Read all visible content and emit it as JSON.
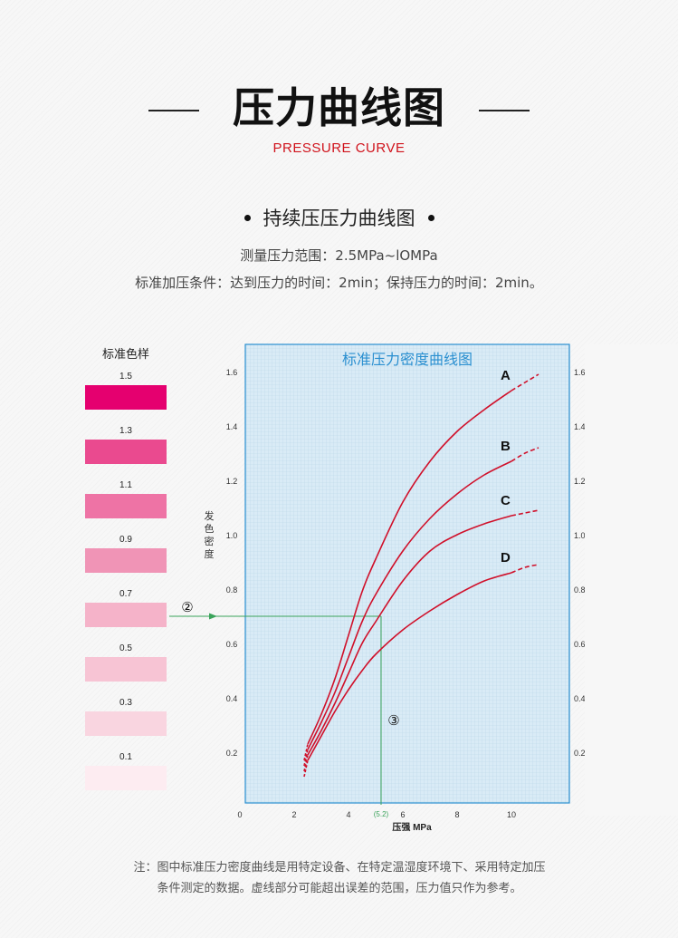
{
  "header": {
    "title": "压力曲线图",
    "subtitle": "PRESSURE CURVE"
  },
  "section": {
    "title": "持续压压力曲线图",
    "line1": "测量压力范围：2.5MPa~lOMPa",
    "line2": "标准加压条件：达到压力的时间：2min；保持压力的时间：2min。"
  },
  "swatches": {
    "title": "标准色样",
    "items": [
      {
        "label": "1.5",
        "color": "#e5006f"
      },
      {
        "label": "1.3",
        "color": "#ea4a8f"
      },
      {
        "label": "1.1",
        "color": "#ee73a5"
      },
      {
        "label": "0.9",
        "color": "#f094b6"
      },
      {
        "label": "0.7",
        "color": "#f5b3c9"
      },
      {
        "label": "0.5",
        "color": "#f7c4d4"
      },
      {
        "label": "0.3",
        "color": "#f9d5e0"
      },
      {
        "label": "0.1",
        "color": "#fdecf1"
      }
    ]
  },
  "chart_data": {
    "type": "line",
    "title": "标准压力密度曲线图",
    "xlabel": "压强 MPa",
    "ylabel": "发色密度",
    "xlim": [
      0,
      12
    ],
    "ylim": [
      0,
      1.6
    ],
    "x_ticks": [
      "0",
      "2",
      "4",
      "6",
      "8",
      "10"
    ],
    "y_ticks": [
      "0.2",
      "0.4",
      "0.6",
      "0.8",
      "1.0",
      "1.2",
      "1.4",
      "1.6"
    ],
    "right_ticks": [
      "0.2",
      "0.4",
      "0.6",
      "0.8",
      "1.0",
      "1.2",
      "1.4",
      "1.6"
    ],
    "grid": true,
    "line_color": "#d0102a",
    "background_color": "#d8ecf7",
    "series": [
      {
        "name": "A",
        "solid": [
          [
            2.5,
            0.23
          ],
          [
            3,
            0.34
          ],
          [
            3.5,
            0.47
          ],
          [
            4,
            0.63
          ],
          [
            4.5,
            0.79
          ],
          [
            5,
            0.91
          ],
          [
            6,
            1.12
          ],
          [
            7,
            1.27
          ],
          [
            8,
            1.38
          ],
          [
            9,
            1.46
          ],
          [
            10,
            1.53
          ]
        ],
        "dashed": [
          [
            10,
            1.53
          ],
          [
            10.5,
            1.56
          ],
          [
            11,
            1.59
          ]
        ]
      },
      {
        "name": "B",
        "solid": [
          [
            2.5,
            0.21
          ],
          [
            3,
            0.31
          ],
          [
            3.5,
            0.42
          ],
          [
            4,
            0.55
          ],
          [
            4.5,
            0.68
          ],
          [
            5,
            0.78
          ],
          [
            6,
            0.94
          ],
          [
            7,
            1.06
          ],
          [
            8,
            1.15
          ],
          [
            9,
            1.22
          ],
          [
            10,
            1.27
          ]
        ],
        "dashed": [
          [
            10,
            1.27
          ],
          [
            10.5,
            1.3
          ],
          [
            11,
            1.32
          ]
        ]
      },
      {
        "name": "C",
        "solid": [
          [
            2.5,
            0.19
          ],
          [
            3,
            0.28
          ],
          [
            3.5,
            0.38
          ],
          [
            4,
            0.49
          ],
          [
            4.5,
            0.6
          ],
          [
            5,
            0.68
          ],
          [
            6,
            0.83
          ],
          [
            7,
            0.94
          ],
          [
            8,
            1.0
          ],
          [
            9,
            1.04
          ],
          [
            10,
            1.07
          ]
        ],
        "dashed": [
          [
            10,
            1.07
          ],
          [
            10.5,
            1.08
          ],
          [
            11,
            1.09
          ]
        ]
      },
      {
        "name": "D",
        "solid": [
          [
            2.5,
            0.17
          ],
          [
            3,
            0.26
          ],
          [
            3.5,
            0.35
          ],
          [
            4,
            0.43
          ],
          [
            4.5,
            0.5
          ],
          [
            5,
            0.56
          ],
          [
            6,
            0.65
          ],
          [
            7,
            0.72
          ],
          [
            8,
            0.78
          ],
          [
            9,
            0.83
          ],
          [
            10,
            0.86
          ]
        ],
        "dashed": [
          [
            10,
            0.86
          ],
          [
            10.5,
            0.88
          ],
          [
            11,
            0.89
          ]
        ]
      }
    ],
    "annotations": [
      {
        "label": "②",
        "type": "marker",
        "y": 0.7
      },
      {
        "label": "③",
        "type": "marker",
        "x": 5.2
      },
      {
        "label": "(5.2)",
        "type": "x-readout",
        "x": 5.2
      },
      {
        "type": "reference-path",
        "color": "#3aa35a",
        "from_y": 0.7,
        "to_x": 5.2
      }
    ]
  },
  "notes": {
    "line1": "注：图中标准压力密度曲线是用特定设备、在特定温湿度环境下、采用特定加压",
    "line2": "条件测定的数据。虚线部分可能超出误差的范围，压力值只作为参考。"
  }
}
